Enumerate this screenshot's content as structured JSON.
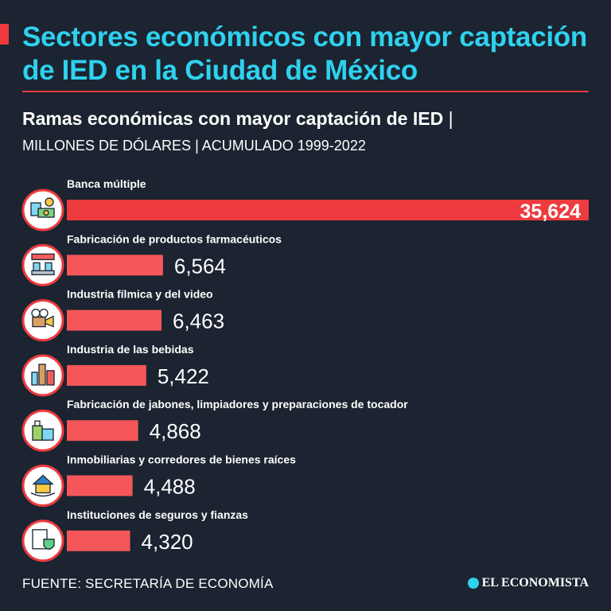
{
  "header": {
    "title": "Sectores económicos con mayor captación de IED en la Ciudad de México",
    "subtitle": "Ramas económicas con mayor captación de IED",
    "subtitle_sep": "|",
    "units": "MILLONES DE DÓLARES | ACUMULADO 1999-2022"
  },
  "footer": {
    "source": "FUENTE: SECRETARÍA DE ECONOMÍA",
    "brand": "EL ECONOMISTA"
  },
  "colors": {
    "background": "#1b2430",
    "accent_red": "#ee3b3f",
    "bar": "#f4565a",
    "title": "#2fd1ef"
  },
  "chart_data": {
    "type": "bar",
    "orientation": "horizontal",
    "title": "Ramas económicas con mayor captación de IED",
    "units": "Millones de dólares",
    "categories": [
      "Banca múltiple",
      "Fabricación de productos farmacéuticos",
      "Industria fílmica y del video",
      "Industria de las bebidas",
      "Fabricación de jabones, limpiadores y preparaciones de tocador",
      "Inmobiliarias y corredores de bienes raíces",
      "Instituciones de seguros y fianzas"
    ],
    "values": [
      35624,
      6564,
      6463,
      5422,
      4868,
      4488,
      4320
    ],
    "value_labels": [
      "35,624",
      "6,564",
      "6,463",
      "5,422",
      "4,868",
      "4,488",
      "4,320"
    ],
    "icons": [
      "bank-money-icon",
      "pharma-factory-icon",
      "film-camera-icon",
      "beverages-icon",
      "soap-cleaner-icon",
      "real-estate-icon",
      "insurance-icon"
    ],
    "xlim": [
      0,
      35624
    ]
  }
}
